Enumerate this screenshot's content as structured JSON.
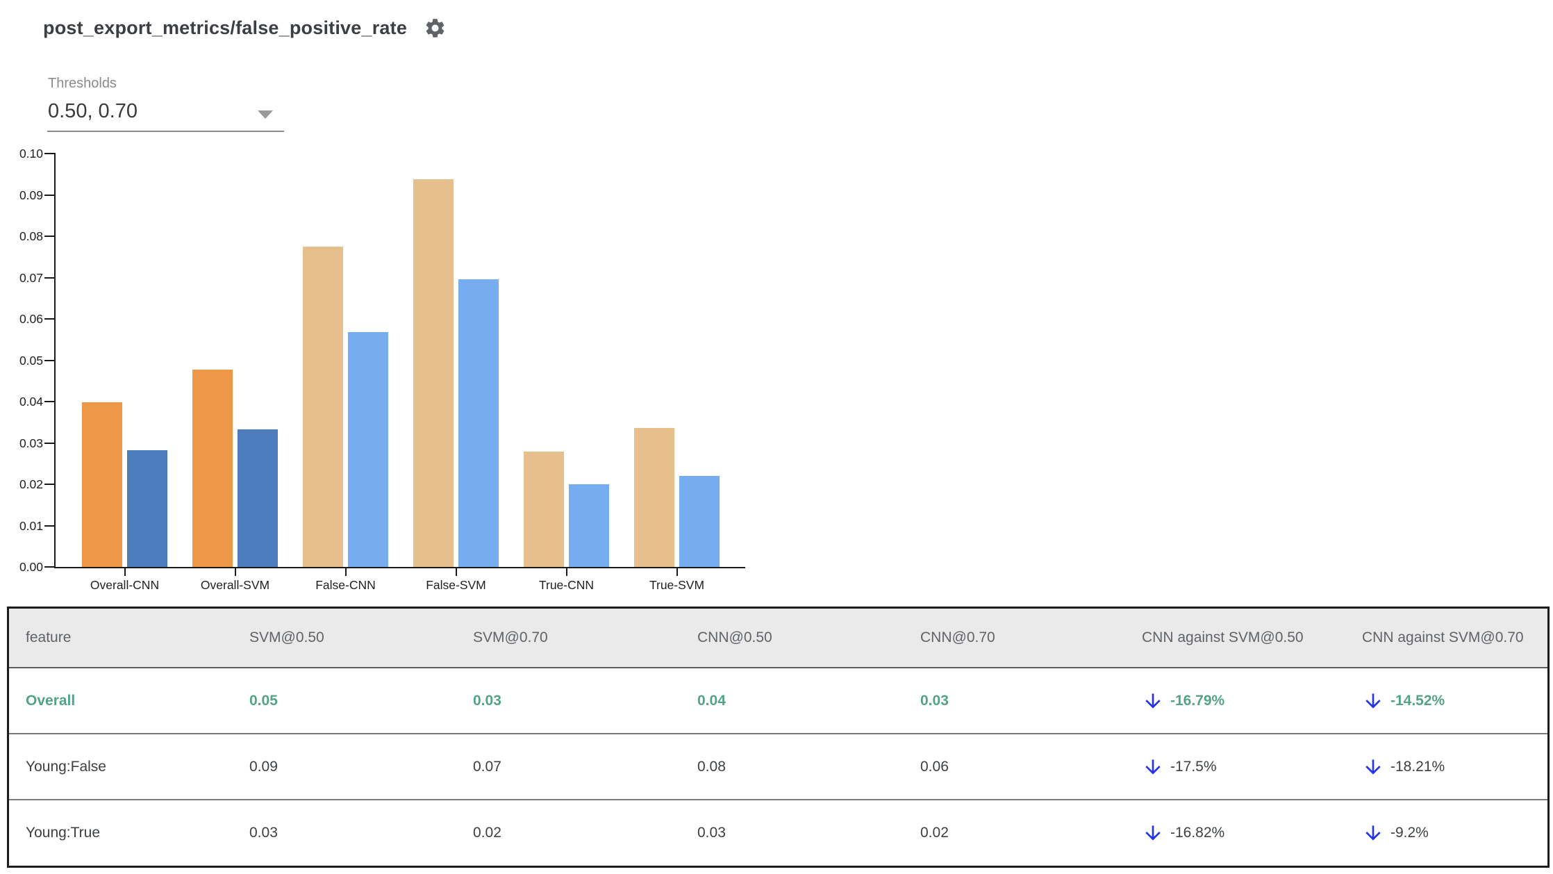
{
  "header": {
    "title": "post_export_metrics/false_positive_rate",
    "settings_icon": "gear-icon"
  },
  "thresholds": {
    "label": "Thresholds",
    "value": "0.50, 0.70"
  },
  "chart_data": {
    "type": "bar",
    "title": "",
    "xlabel": "",
    "ylabel": "",
    "ylim": [
      0,
      0.1
    ],
    "ytick_step": 0.01,
    "grid": false,
    "legend_position": "none",
    "categories": [
      "Overall-CNN",
      "Overall-SVM",
      "False-CNN",
      "False-SVM",
      "True-CNN",
      "True-SVM"
    ],
    "series": [
      {
        "name": "threshold 0.50",
        "values": [
          0.0398,
          0.0478,
          0.0774,
          0.0937,
          0.0279,
          0.0336
        ]
      },
      {
        "name": "threshold 0.70",
        "values": [
          0.0283,
          0.0332,
          0.0568,
          0.0695,
          0.02,
          0.022
        ]
      }
    ],
    "highlight_categories": [
      "Overall-CNN",
      "Overall-SVM"
    ],
    "colors": {
      "highlight": [
        "#EF9749",
        "#4D7CBC"
      ],
      "normal": [
        "#E7BF8C",
        "#76ADF0"
      ]
    }
  },
  "table": {
    "columns": [
      "feature",
      "SVM@0.50",
      "SVM@0.70",
      "CNN@0.50",
      "CNN@0.70",
      "CNN against SVM@0.50",
      "CNN against SVM@0.70"
    ],
    "rows": [
      {
        "feature": "Overall",
        "values": [
          "0.05",
          "0.03",
          "0.04",
          "0.03"
        ],
        "changes": [
          {
            "dir": "down",
            "text": "-16.79%"
          },
          {
            "dir": "down",
            "text": "-14.52%"
          }
        ],
        "highlight": true
      },
      {
        "feature": "Young:False",
        "values": [
          "0.09",
          "0.07",
          "0.08",
          "0.06"
        ],
        "changes": [
          {
            "dir": "down",
            "text": "-17.5%"
          },
          {
            "dir": "down",
            "text": "-18.21%"
          }
        ],
        "highlight": false
      },
      {
        "feature": "Young:True",
        "values": [
          "0.03",
          "0.02",
          "0.03",
          "0.02"
        ],
        "changes": [
          {
            "dir": "down",
            "text": "-16.82%"
          },
          {
            "dir": "down",
            "text": "-9.2%"
          }
        ],
        "highlight": false
      }
    ]
  },
  "colors": {
    "highlight_green": "#55A287",
    "arrow_blue": "#2433E8",
    "header_bg": "#EAEAEA",
    "title_text": "#3B3F43"
  }
}
